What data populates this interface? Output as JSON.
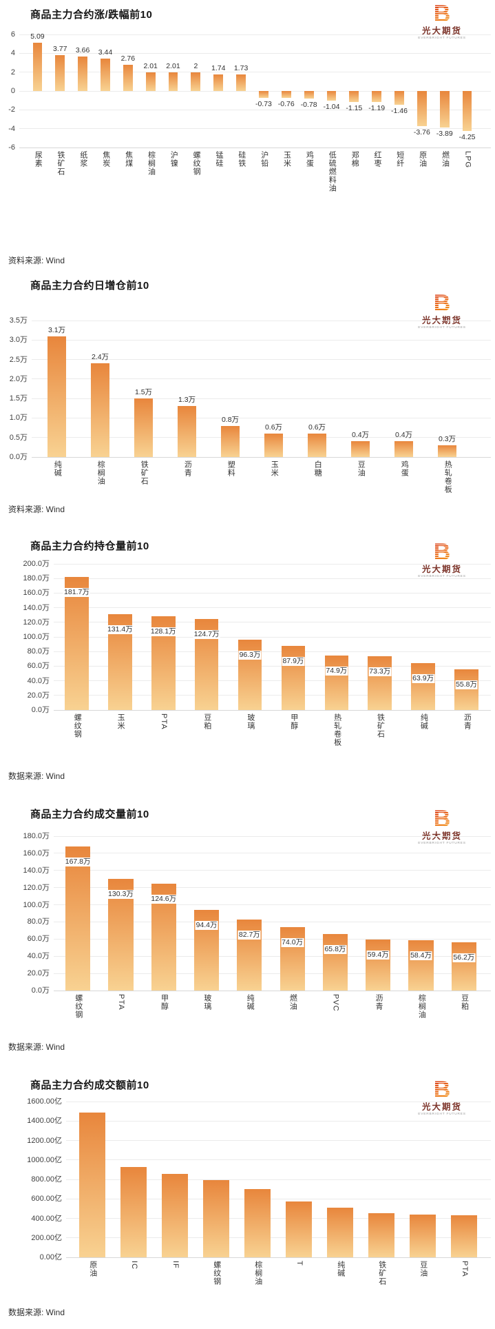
{
  "logo": {
    "b_glyph": "B",
    "name_cn": "光大期货",
    "name_en": "EVERBRIGHT FUTURES"
  },
  "chart_data": [
    {
      "type": "bar",
      "title": "商品主力合约涨/跌幅前10",
      "source": "资料来源: Wind",
      "unit": "%",
      "categories": [
        "尿素",
        "铁矿石",
        "纸浆",
        "焦炭",
        "焦煤",
        "棕榈油",
        "沪镍",
        "螺纹钢",
        "锰硅",
        "硅铁",
        "沪铅",
        "玉米",
        "鸡蛋",
        "低硫燃料油",
        "郑棉",
        "红枣",
        "短纤",
        "原油",
        "燃油",
        "LPG"
      ],
      "values": [
        5.09,
        3.77,
        3.66,
        3.44,
        2.76,
        2.01,
        2.01,
        2,
        1.74,
        1.73,
        -0.73,
        -0.76,
        -0.78,
        -1.04,
        -1.15,
        -1.19,
        -1.46,
        -3.76,
        -3.89,
        -4.25
      ],
      "value_labels": [
        "5.09",
        "3.77",
        "3.66",
        "3.44",
        "2.76",
        "2.01",
        "2.01",
        "2",
        "1.74",
        "1.73",
        "-0.73",
        "-0.76",
        "-0.78",
        "-1.04",
        "-1.15",
        "-1.19",
        "-1.46",
        "-3.76",
        "-3.89",
        "-4.25"
      ],
      "ylim": [
        -6,
        6
      ],
      "y_ticks": [
        {
          "label": "6",
          "value": 6
        },
        {
          "label": "4",
          "value": 4
        },
        {
          "label": "2",
          "value": 2
        },
        {
          "label": "0",
          "value": 0
        },
        {
          "label": "-2",
          "value": -2
        },
        {
          "label": "-4",
          "value": -4
        },
        {
          "label": "-6",
          "value": -6
        }
      ],
      "grid": true,
      "legend": "none",
      "bar_gradient": [
        "#E8863C",
        "#F8D292"
      ]
    },
    {
      "type": "bar",
      "title": "商品主力合约日增仓前10",
      "source": "资料来源: Wind",
      "unit": "万",
      "categories": [
        "纯碱",
        "棕榈油",
        "铁矿石",
        "沥青",
        "塑料",
        "玉米",
        "白糖",
        "豆油",
        "鸡蛋",
        "热轧卷板"
      ],
      "values": [
        3.1,
        2.4,
        1.5,
        1.3,
        0.8,
        0.6,
        0.6,
        0.4,
        0.4,
        0.3
      ],
      "value_labels": [
        "3.1万",
        "2.4万",
        "1.5万",
        "1.3万",
        "0.8万",
        "0.6万",
        "0.6万",
        "0.4万",
        "0.4万",
        "0.3万"
      ],
      "ylim": [
        0,
        3.5
      ],
      "y_ticks": [
        {
          "label": "3.5万",
          "value": 3.5
        },
        {
          "label": "3.0万",
          "value": 3.0
        },
        {
          "label": "2.5万",
          "value": 2.5
        },
        {
          "label": "2.0万",
          "value": 2.0
        },
        {
          "label": "1.5万",
          "value": 1.5
        },
        {
          "label": "1.0万",
          "value": 1.0
        },
        {
          "label": "0.5万",
          "value": 0.5
        },
        {
          "label": "0.0万",
          "value": 0.0
        }
      ],
      "grid": true,
      "legend": "none",
      "bar_gradient": [
        "#E8863C",
        "#F8D292"
      ]
    },
    {
      "type": "bar",
      "title": "商品主力合约持仓量前10",
      "source": "数据来源: Wind",
      "unit": "万",
      "categories": [
        "螺纹钢",
        "玉米",
        "PTA",
        "豆粕",
        "玻璃",
        "甲醇",
        "热轧卷板",
        "铁矿石",
        "纯碱",
        "沥青"
      ],
      "values": [
        181.7,
        131.4,
        128.1,
        124.7,
        96.3,
        87.9,
        74.9,
        73.3,
        63.9,
        55.8
      ],
      "value_labels": [
        "181.7万",
        "131.4万",
        "128.1万",
        "124.7万",
        "96.3万",
        "87.9万",
        "74.9万",
        "73.3万",
        "63.9万",
        "55.8万"
      ],
      "ylim": [
        0,
        200
      ],
      "y_ticks": [
        {
          "label": "200.0万",
          "value": 200
        },
        {
          "label": "180.0万",
          "value": 180
        },
        {
          "label": "160.0万",
          "value": 160
        },
        {
          "label": "140.0万",
          "value": 140
        },
        {
          "label": "120.0万",
          "value": 120
        },
        {
          "label": "100.0万",
          "value": 100
        },
        {
          "label": "80.0万",
          "value": 80
        },
        {
          "label": "60.0万",
          "value": 60
        },
        {
          "label": "40.0万",
          "value": 40
        },
        {
          "label": "20.0万",
          "value": 20
        },
        {
          "label": "0.0万",
          "value": 0
        }
      ],
      "grid": true,
      "legend": "none",
      "bar_gradient": [
        "#E8863C",
        "#F8D292"
      ]
    },
    {
      "type": "bar",
      "title": "商品主力合约成交量前10",
      "source": "数据来源: Wind",
      "unit": "万",
      "categories": [
        "螺纹钢",
        "PTA",
        "甲醇",
        "玻璃",
        "纯碱",
        "燃油",
        "PVC",
        "沥青",
        "棕榈油",
        "豆粕"
      ],
      "values": [
        167.8,
        130.3,
        124.6,
        94.4,
        82.7,
        74.0,
        65.8,
        59.4,
        58.4,
        56.2
      ],
      "value_labels": [
        "167.8万",
        "130.3万",
        "124.6万",
        "94.4万",
        "82.7万",
        "74.0万",
        "65.8万",
        "59.4万",
        "58.4万",
        "56.2万"
      ],
      "ylim": [
        0,
        180
      ],
      "y_ticks": [
        {
          "label": "180.0万",
          "value": 180
        },
        {
          "label": "160.0万",
          "value": 160
        },
        {
          "label": "140.0万",
          "value": 140
        },
        {
          "label": "120.0万",
          "value": 120
        },
        {
          "label": "100.0万",
          "value": 100
        },
        {
          "label": "80.0万",
          "value": 80
        },
        {
          "label": "60.0万",
          "value": 60
        },
        {
          "label": "40.0万",
          "value": 40
        },
        {
          "label": "20.0万",
          "value": 20
        },
        {
          "label": "0.0万",
          "value": 0
        }
      ],
      "grid": true,
      "legend": "none",
      "bar_gradient": [
        "#E8863C",
        "#F8D292"
      ]
    },
    {
      "type": "bar",
      "title": "商品主力合约成交额前10",
      "source": "数据来源: Wind",
      "unit": "亿",
      "categories": [
        "原油",
        "IC",
        "IF",
        "螺纹钢",
        "棕榈油",
        "T",
        "纯碱",
        "铁矿石",
        "豆油",
        "PTA"
      ],
      "values": [
        1490,
        925,
        860,
        795,
        700,
        575,
        510,
        450,
        440,
        430
      ],
      "value_labels": null,
      "ylim": [
        0,
        1600
      ],
      "y_ticks": [
        {
          "label": "1600.00亿",
          "value": 1600
        },
        {
          "label": "1400.00亿",
          "value": 1400
        },
        {
          "label": "1200.00亿",
          "value": 1200
        },
        {
          "label": "1000.00亿",
          "value": 1000
        },
        {
          "label": "800.00亿",
          "value": 800
        },
        {
          "label": "600.00亿",
          "value": 600
        },
        {
          "label": "400.00亿",
          "value": 400
        },
        {
          "label": "200.00亿",
          "value": 200
        },
        {
          "label": "0.00亿",
          "value": 0
        }
      ],
      "grid": true,
      "legend": "none",
      "bar_gradient": [
        "#E8863C",
        "#F8D292"
      ]
    }
  ]
}
